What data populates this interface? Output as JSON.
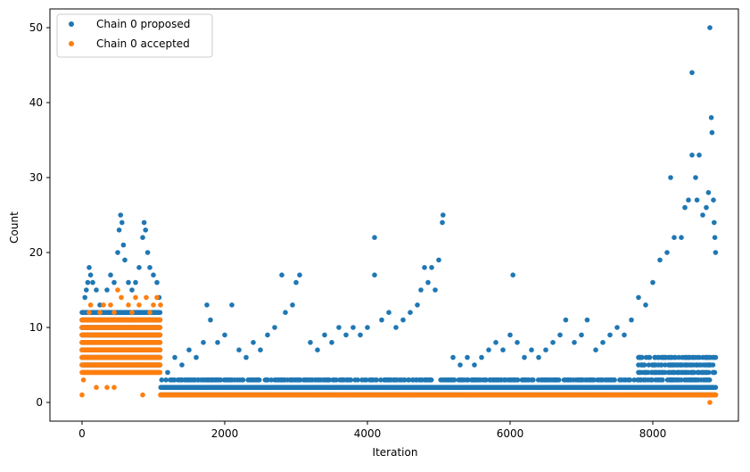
{
  "chart_data": {
    "type": "scatter",
    "title": "",
    "xlabel": "Iteration",
    "ylabel": "Count",
    "xlim": [
      -450,
      9200
    ],
    "ylim": [
      -2.5,
      52.5
    ],
    "xticks": [
      0,
      2000,
      4000,
      6000,
      8000
    ],
    "yticks": [
      0,
      10,
      20,
      30,
      40,
      50
    ],
    "xtick_labels": [
      "0",
      "2000",
      "4000",
      "6000",
      "8000"
    ],
    "ytick_labels": [
      "0",
      "10",
      "20",
      "30",
      "40",
      "50"
    ],
    "grid": false,
    "legend": {
      "position": "top-left"
    },
    "series": [
      {
        "name": "Chain 0 proposed",
        "color": "#1f77b4",
        "marker": "circle",
        "x_range": [
          0,
          8880
        ],
        "points": [
          [
            0,
            10
          ],
          [
            20,
            12
          ],
          [
            40,
            14
          ],
          [
            60,
            15
          ],
          [
            80,
            16
          ],
          [
            100,
            18
          ],
          [
            120,
            17
          ],
          [
            150,
            16
          ],
          [
            200,
            15
          ],
          [
            250,
            13
          ],
          [
            300,
            12
          ],
          [
            350,
            15
          ],
          [
            400,
            17
          ],
          [
            450,
            16
          ],
          [
            500,
            20
          ],
          [
            520,
            23
          ],
          [
            540,
            25
          ],
          [
            560,
            24
          ],
          [
            580,
            21
          ],
          [
            600,
            19
          ],
          [
            650,
            16
          ],
          [
            700,
            15
          ],
          [
            750,
            16
          ],
          [
            800,
            18
          ],
          [
            850,
            22
          ],
          [
            870,
            24
          ],
          [
            890,
            23
          ],
          [
            920,
            20
          ],
          [
            950,
            18
          ],
          [
            1000,
            17
          ],
          [
            1050,
            16
          ],
          [
            1080,
            14
          ],
          [
            1150,
            2
          ],
          [
            1200,
            4
          ],
          [
            1300,
            6
          ],
          [
            1400,
            5
          ],
          [
            1500,
            7
          ],
          [
            1600,
            6
          ],
          [
            1700,
            8
          ],
          [
            1750,
            13
          ],
          [
            1800,
            11
          ],
          [
            1900,
            8
          ],
          [
            2000,
            9
          ],
          [
            2100,
            13
          ],
          [
            2200,
            7
          ],
          [
            2300,
            6
          ],
          [
            2400,
            8
          ],
          [
            2500,
            7
          ],
          [
            2600,
            9
          ],
          [
            2700,
            10
          ],
          [
            2800,
            17
          ],
          [
            2850,
            12
          ],
          [
            2950,
            13
          ],
          [
            3000,
            16
          ],
          [
            3050,
            17
          ],
          [
            3200,
            8
          ],
          [
            3300,
            7
          ],
          [
            3400,
            9
          ],
          [
            3500,
            8
          ],
          [
            3600,
            10
          ],
          [
            3700,
            9
          ],
          [
            3800,
            10
          ],
          [
            3900,
            9
          ],
          [
            4000,
            10
          ],
          [
            4100,
            22
          ],
          [
            4100,
            17
          ],
          [
            4200,
            11
          ],
          [
            4300,
            12
          ],
          [
            4400,
            10
          ],
          [
            4500,
            11
          ],
          [
            4600,
            12
          ],
          [
            4700,
            13
          ],
          [
            4750,
            15
          ],
          [
            4800,
            18
          ],
          [
            4850,
            16
          ],
          [
            4900,
            18
          ],
          [
            4950,
            15
          ],
          [
            5000,
            19
          ],
          [
            5050,
            24
          ],
          [
            5060,
            25
          ],
          [
            5200,
            6
          ],
          [
            5300,
            5
          ],
          [
            5400,
            6
          ],
          [
            5500,
            5
          ],
          [
            5600,
            6
          ],
          [
            5700,
            7
          ],
          [
            5800,
            8
          ],
          [
            5900,
            7
          ],
          [
            6000,
            9
          ],
          [
            6040,
            17
          ],
          [
            6100,
            8
          ],
          [
            6200,
            6
          ],
          [
            6300,
            7
          ],
          [
            6400,
            6
          ],
          [
            6500,
            7
          ],
          [
            6600,
            8
          ],
          [
            6700,
            9
          ],
          [
            6780,
            11
          ],
          [
            6900,
            8
          ],
          [
            7000,
            9
          ],
          [
            7080,
            11
          ],
          [
            7200,
            7
          ],
          [
            7300,
            8
          ],
          [
            7400,
            9
          ],
          [
            7500,
            10
          ],
          [
            7600,
            9
          ],
          [
            7700,
            11
          ],
          [
            7800,
            14
          ],
          [
            7900,
            13
          ],
          [
            8000,
            16
          ],
          [
            8100,
            19
          ],
          [
            8200,
            20
          ],
          [
            8250,
            30
          ],
          [
            8300,
            22
          ],
          [
            8400,
            22
          ],
          [
            8450,
            26
          ],
          [
            8500,
            27
          ],
          [
            8550,
            44
          ],
          [
            8550,
            33
          ],
          [
            8600,
            30
          ],
          [
            8620,
            27
          ],
          [
            8650,
            33
          ],
          [
            8700,
            25
          ],
          [
            8750,
            26
          ],
          [
            8780,
            28
          ],
          [
            8800,
            50
          ],
          [
            8820,
            38
          ],
          [
            8830,
            36
          ],
          [
            8850,
            27
          ],
          [
            8860,
            24
          ],
          [
            8870,
            22
          ],
          [
            8880,
            20
          ]
        ]
      },
      {
        "name": "Chain 0 accepted",
        "color": "#ff7f0e",
        "marker": "circle",
        "x_range": [
          0,
          8880
        ],
        "points": [
          [
            0,
            1
          ],
          [
            20,
            3
          ],
          [
            40,
            6
          ],
          [
            60,
            8
          ],
          [
            80,
            10
          ],
          [
            100,
            12
          ],
          [
            120,
            13
          ],
          [
            150,
            11
          ],
          [
            200,
            9
          ],
          [
            250,
            12
          ],
          [
            300,
            13
          ],
          [
            350,
            10
          ],
          [
            400,
            13
          ],
          [
            450,
            12
          ],
          [
            500,
            15
          ],
          [
            550,
            14
          ],
          [
            600,
            11
          ],
          [
            650,
            13
          ],
          [
            700,
            12
          ],
          [
            750,
            14
          ],
          [
            800,
            13
          ],
          [
            850,
            11
          ],
          [
            900,
            14
          ],
          [
            950,
            12
          ],
          [
            1000,
            13
          ],
          [
            1050,
            14
          ],
          [
            1100,
            13
          ],
          [
            200,
            2
          ],
          [
            350,
            2
          ],
          [
            450,
            2
          ],
          [
            850,
            1
          ],
          [
            1100,
            1
          ],
          [
            8800,
            0
          ],
          [
            8880,
            1
          ]
        ]
      }
    ]
  },
  "legend_entries": [
    {
      "label": "Chain 0 proposed",
      "color": "#1f77b4"
    },
    {
      "label": "Chain 0 accepted",
      "color": "#ff7f0e"
    }
  ]
}
